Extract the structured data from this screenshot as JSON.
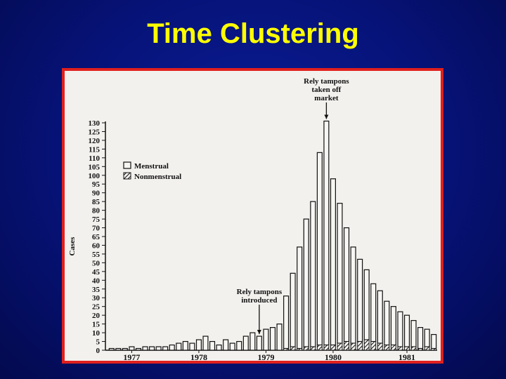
{
  "slide": {
    "title": "Time Clustering"
  },
  "chart_data": {
    "type": "bar",
    "ylabel": "Cases",
    "ylim": [
      0,
      130
    ],
    "yticks": [
      0,
      5,
      10,
      15,
      20,
      25,
      30,
      35,
      40,
      45,
      50,
      55,
      60,
      65,
      70,
      75,
      80,
      85,
      90,
      95,
      100,
      105,
      110,
      115,
      120,
      125,
      130
    ],
    "legend": [
      "Menstrual",
      "Nonmenstrual"
    ],
    "legend_position": "top-left",
    "year_labels": [
      "1977",
      "1978",
      "1979",
      "1980",
      "1981"
    ],
    "series": [
      {
        "name": "Menstrual",
        "values": [
          1,
          1,
          1,
          2,
          1,
          2,
          2,
          2,
          2,
          3,
          4,
          5,
          4,
          6,
          8,
          5,
          3,
          6,
          4,
          5,
          8,
          10,
          8,
          12,
          13,
          15,
          30,
          42,
          58,
          73,
          83,
          110,
          128,
          95,
          80,
          65,
          55,
          47,
          40,
          33,
          30,
          25,
          22,
          20,
          18,
          15,
          12,
          10,
          8
        ]
      },
      {
        "name": "Nonmenstrual",
        "values": [
          0,
          0,
          0,
          0,
          0,
          0,
          0,
          0,
          0,
          0,
          0,
          0,
          0,
          0,
          0,
          0,
          0,
          0,
          0,
          0,
          0,
          0,
          0,
          0,
          0,
          0,
          1,
          2,
          1,
          2,
          2,
          3,
          3,
          3,
          4,
          5,
          4,
          5,
          6,
          5,
          4,
          3,
          3,
          2,
          2,
          2,
          1,
          2,
          1
        ]
      }
    ],
    "annotations": [
      {
        "text_lines": [
          "Rely tampons",
          "introduced"
        ],
        "bar_index": 22
      },
      {
        "text_lines": [
          "Rely tampons",
          "taken off",
          "market"
        ],
        "bar_index": 32
      }
    ]
  }
}
